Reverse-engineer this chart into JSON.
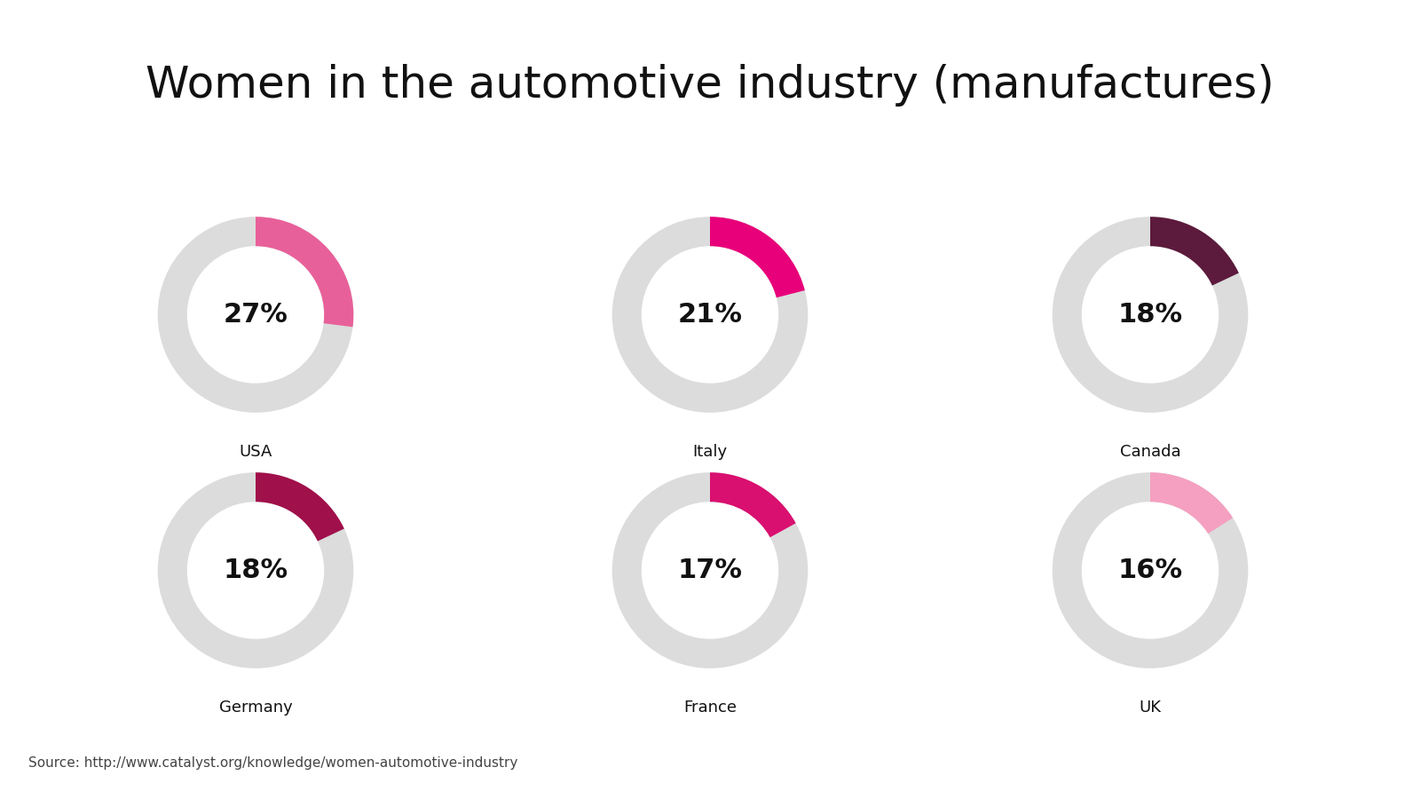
{
  "title": "Women in the automotive industry (manufactures)",
  "countries": [
    "USA",
    "Italy",
    "Canada",
    "Germany",
    "France",
    "UK"
  ],
  "values": [
    27,
    21,
    18,
    18,
    17,
    16
  ],
  "colors": [
    "#E8609A",
    "#E8007A",
    "#5C1A3C",
    "#A0104A",
    "#D91070",
    "#F5A0C0"
  ],
  "bg_color": "#DCDCDC",
  "text_color": "#111111",
  "source": "Source: http://www.catalyst.org/knowledge/women-automotive-industry",
  "background": "#FFFFFF",
  "label_fontsize": 13,
  "value_fontsize": 22,
  "title_fontsize": 36,
  "source_fontsize": 11,
  "donut_width": 0.3,
  "grid_rows": 2,
  "grid_cols": 3
}
